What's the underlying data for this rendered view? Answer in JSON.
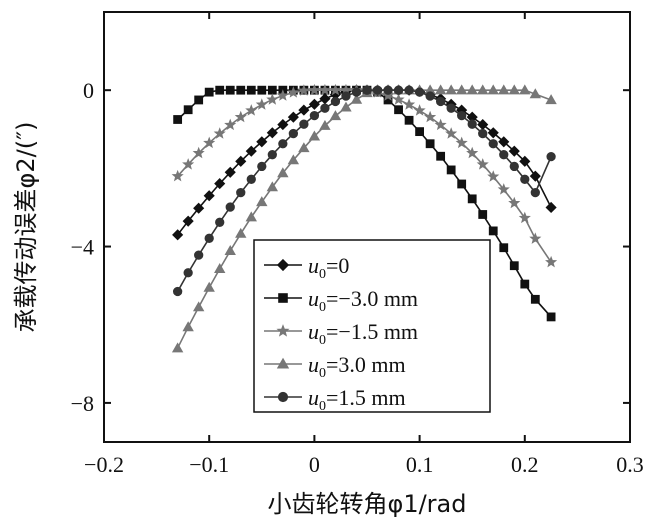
{
  "chart_data": {
    "type": "line",
    "xlabel": "小齿轮转角φ1/rad",
    "ylabel": "承载传动误差φ2/(″)",
    "xlim": [
      -0.2,
      0.3
    ],
    "ylim": [
      -9.0,
      2.0
    ],
    "xticks": [
      -0.2,
      -0.1,
      0,
      0.1,
      0.2,
      0.3
    ],
    "yticks": [
      0,
      -4,
      -8
    ],
    "x_tick_labels": [
      "−0.2",
      "−0.1",
      "0",
      "0.1",
      "0.2",
      "0.3"
    ],
    "y_tick_labels": [
      "0",
      "−4",
      "−8"
    ],
    "grid": false,
    "legend_position": "lower-center",
    "series": [
      {
        "name": "u0=0",
        "legend_parts": [
          "u",
          "0",
          "=0"
        ],
        "marker": "diamond",
        "color": "#111111",
        "x": [
          -0.13,
          -0.12,
          -0.11,
          -0.1,
          -0.09,
          -0.08,
          -0.07,
          -0.06,
          -0.05,
          -0.04,
          -0.03,
          -0.02,
          -0.01,
          0.0,
          0.01,
          0.02,
          0.03,
          0.04,
          0.05,
          0.06,
          0.07,
          0.08,
          0.09,
          0.1,
          0.11,
          0.12,
          0.13,
          0.14,
          0.15,
          0.16,
          0.17,
          0.18,
          0.19,
          0.2,
          0.21,
          0.225
        ],
        "y": [
          -3.7,
          -3.35,
          -3.02,
          -2.7,
          -2.39,
          -2.1,
          -1.82,
          -1.56,
          -1.32,
          -1.09,
          -0.88,
          -0.69,
          -0.51,
          -0.36,
          -0.22,
          -0.11,
          -0.03,
          0.0,
          0.0,
          0.0,
          0.0,
          0.0,
          0.0,
          -0.03,
          -0.11,
          -0.22,
          -0.36,
          -0.51,
          -0.69,
          -0.88,
          -1.09,
          -1.32,
          -1.56,
          -1.82,
          -2.2,
          -3.0
        ]
      },
      {
        "name": "u0=−3.0 mm",
        "legend_parts": [
          "u",
          "0",
          "=−3.0 mm"
        ],
        "marker": "square",
        "color": "#111111",
        "x": [
          -0.13,
          -0.12,
          -0.11,
          -0.1,
          -0.09,
          -0.08,
          -0.07,
          -0.06,
          -0.05,
          -0.04,
          -0.03,
          -0.02,
          -0.01,
          0.0,
          0.01,
          0.02,
          0.03,
          0.04,
          0.05,
          0.06,
          0.07,
          0.08,
          0.09,
          0.1,
          0.11,
          0.12,
          0.13,
          0.14,
          0.15,
          0.16,
          0.17,
          0.18,
          0.19,
          0.2,
          0.21,
          0.225
        ],
        "y": [
          -0.75,
          -0.5,
          -0.25,
          -0.05,
          0.0,
          0.0,
          0.0,
          0.0,
          0.0,
          0.0,
          0.0,
          0.0,
          0.0,
          0.0,
          0.0,
          0.0,
          0.0,
          0.0,
          0.0,
          -0.05,
          -0.25,
          -0.5,
          -0.77,
          -1.06,
          -1.37,
          -1.69,
          -2.04,
          -2.4,
          -2.78,
          -3.18,
          -3.6,
          -4.03,
          -4.49,
          -4.96,
          -5.35,
          -5.8
        ]
      },
      {
        "name": "u0=−1.5 mm",
        "legend_parts": [
          "u",
          "0",
          "=−1.5 mm"
        ],
        "marker": "star",
        "color": "#777777",
        "x": [
          -0.13,
          -0.12,
          -0.11,
          -0.1,
          -0.09,
          -0.08,
          -0.07,
          -0.06,
          -0.05,
          -0.04,
          -0.03,
          -0.02,
          -0.01,
          0.0,
          0.01,
          0.02,
          0.03,
          0.04,
          0.05,
          0.06,
          0.07,
          0.08,
          0.09,
          0.1,
          0.11,
          0.12,
          0.13,
          0.14,
          0.15,
          0.16,
          0.17,
          0.18,
          0.19,
          0.2,
          0.21,
          0.225
        ],
        "y": [
          -2.2,
          -1.9,
          -1.61,
          -1.35,
          -1.11,
          -0.89,
          -0.69,
          -0.52,
          -0.37,
          -0.24,
          -0.14,
          -0.06,
          -0.01,
          0.0,
          0.0,
          0.0,
          0.0,
          0.0,
          -0.01,
          -0.06,
          -0.14,
          -0.24,
          -0.37,
          -0.52,
          -0.69,
          -0.89,
          -1.11,
          -1.35,
          -1.61,
          -1.9,
          -2.21,
          -2.54,
          -2.89,
          -3.27,
          -3.8,
          -4.4
        ]
      },
      {
        "name": "u0=3.0 mm",
        "legend_parts": [
          "u",
          "0",
          "=3.0 mm"
        ],
        "marker": "triangle",
        "color": "#777777",
        "x": [
          -0.13,
          -0.12,
          -0.11,
          -0.1,
          -0.09,
          -0.08,
          -0.07,
          -0.06,
          -0.05,
          -0.04,
          -0.03,
          -0.02,
          -0.01,
          0.0,
          0.01,
          0.02,
          0.03,
          0.04,
          0.05,
          0.06,
          0.07,
          0.08,
          0.09,
          0.1,
          0.11,
          0.12,
          0.13,
          0.14,
          0.15,
          0.16,
          0.17,
          0.18,
          0.19,
          0.2,
          0.21,
          0.225
        ],
        "y": [
          -6.6,
          -6.06,
          -5.55,
          -5.05,
          -4.57,
          -4.11,
          -3.67,
          -3.25,
          -2.86,
          -2.48,
          -2.12,
          -1.79,
          -1.48,
          -1.18,
          -0.91,
          -0.66,
          -0.44,
          -0.24,
          -0.07,
          0.0,
          0.0,
          0.0,
          0.0,
          0.0,
          0.0,
          0.0,
          0.0,
          0.0,
          0.0,
          0.0,
          0.0,
          0.0,
          0.0,
          0.0,
          -0.1,
          -0.25
        ]
      },
      {
        "name": "u0=1.5 mm",
        "legend_parts": [
          "u",
          "0",
          "=1.5 mm"
        ],
        "marker": "circle",
        "color": "#333333",
        "x": [
          -0.13,
          -0.12,
          -0.11,
          -0.1,
          -0.09,
          -0.08,
          -0.07,
          -0.06,
          -0.05,
          -0.04,
          -0.03,
          -0.02,
          -0.01,
          0.0,
          0.01,
          0.02,
          0.03,
          0.04,
          0.05,
          0.06,
          0.07,
          0.08,
          0.09,
          0.1,
          0.11,
          0.12,
          0.13,
          0.14,
          0.15,
          0.16,
          0.17,
          0.18,
          0.19,
          0.2,
          0.21,
          0.225
        ],
        "y": [
          -5.15,
          -4.67,
          -4.22,
          -3.79,
          -3.38,
          -2.99,
          -2.62,
          -2.28,
          -1.95,
          -1.65,
          -1.37,
          -1.11,
          -0.87,
          -0.65,
          -0.46,
          -0.29,
          -0.15,
          -0.05,
          0.0,
          0.0,
          0.0,
          0.0,
          0.0,
          -0.05,
          -0.15,
          -0.29,
          -0.46,
          -0.65,
          -0.87,
          -1.11,
          -1.37,
          -1.65,
          -1.95,
          -2.28,
          -2.62,
          -1.7
        ]
      }
    ]
  }
}
